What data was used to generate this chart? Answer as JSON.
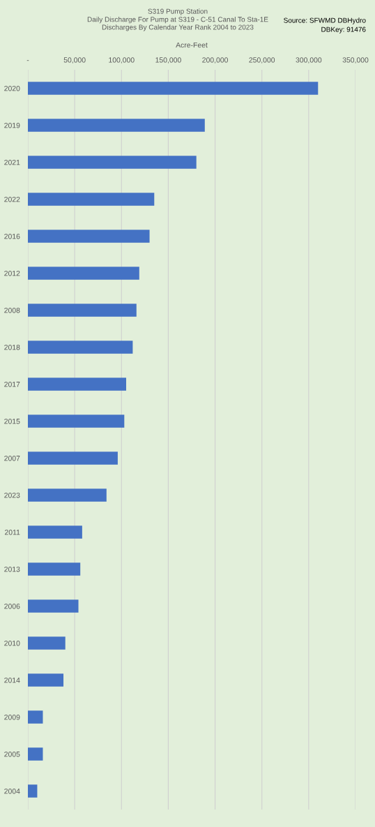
{
  "chart_data": {
    "type": "bar",
    "orientation": "horizontal",
    "title": "S319 Pump Station",
    "subtitle": "Daily Discharge For Pump at S319 - C-51 Canal To Sta-1E\nDischarges By Calendar Year Rank 2004 to 2023",
    "xlabel": "Acre-Feet",
    "annotations": [
      "Source: SFWMD DBHydro",
      "DBKey: 91476"
    ],
    "categories": [
      "2020",
      "2019",
      "2021",
      "2022",
      "2016",
      "2012",
      "2008",
      "2018",
      "2017",
      "2015",
      "2007",
      "2023",
      "2011",
      "2013",
      "2006",
      "2010",
      "2014",
      "2009",
      "2005",
      "2004"
    ],
    "values": [
      310000,
      189000,
      180000,
      135000,
      130000,
      119000,
      116000,
      112000,
      105000,
      103000,
      96000,
      84000,
      58000,
      56000,
      54000,
      40000,
      38000,
      16000,
      16000,
      10000
    ],
    "color": "#4472c4",
    "xlim": [
      0,
      350000
    ],
    "xticks": [
      {
        "value": 0,
        "label": "-"
      },
      {
        "value": 50000,
        "label": "50,000"
      },
      {
        "value": 100000,
        "label": "100,000"
      },
      {
        "value": 150000,
        "label": "150,000"
      },
      {
        "value": 200000,
        "label": "200,000"
      },
      {
        "value": 250000,
        "label": "250,000"
      },
      {
        "value": 300000,
        "label": "300,000"
      },
      {
        "value": 350000,
        "label": "350,000"
      }
    ],
    "grid": "x"
  }
}
